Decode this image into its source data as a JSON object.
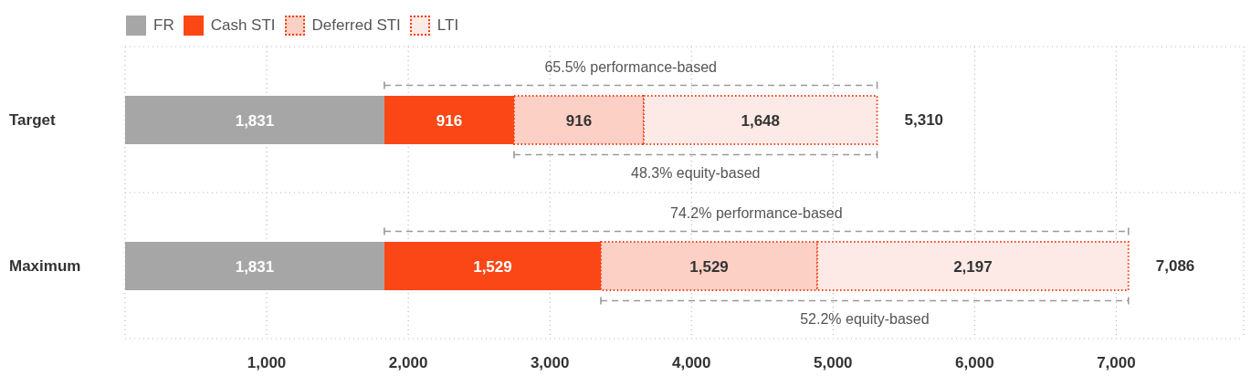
{
  "chart_data": {
    "type": "bar",
    "orientation": "horizontal",
    "stacked": true,
    "categories": [
      "Target",
      "Maximum"
    ],
    "series": [
      {
        "name": "FR",
        "color": "#a6a6a6",
        "values": [
          1831,
          1831
        ],
        "value_labels": [
          "1,831",
          "1,831"
        ]
      },
      {
        "name": "Cash STI",
        "color": "#fb4716",
        "values": [
          916,
          1529
        ],
        "value_labels": [
          "916",
          "1,529"
        ]
      },
      {
        "name": "Deferred STI",
        "color": "#fcd0c4",
        "values": [
          916,
          1529
        ],
        "value_labels": [
          "916",
          "1,529"
        ],
        "line_style": "dotted"
      },
      {
        "name": "LTI",
        "color": "#fdeae6",
        "values": [
          1648,
          2197
        ],
        "value_labels": [
          "1,648",
          "2,197"
        ],
        "line_style": "dotted"
      }
    ],
    "xlim": [
      0,
      7900
    ],
    "xticks": [
      {
        "value": 1000,
        "label": "1,000"
      },
      {
        "value": 2000,
        "label": "2,000"
      },
      {
        "value": 3000,
        "label": "3,000"
      },
      {
        "value": 4000,
        "label": "4,000"
      },
      {
        "value": 5000,
        "label": "5,000"
      },
      {
        "value": 6000,
        "label": "6,000"
      },
      {
        "value": 7000,
        "label": "7,000"
      }
    ],
    "totals": [
      "5,310",
      "7,086"
    ],
    "annotations": [
      "65.5% performance-based",
      "48.3% equity-based",
      "74.2% performance-based",
      "52.2% equity-based"
    ],
    "grid": true,
    "legend": "top left"
  }
}
